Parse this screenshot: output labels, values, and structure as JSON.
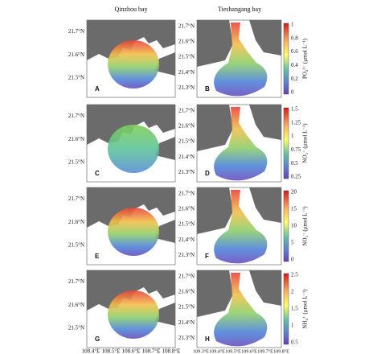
{
  "headers": [
    "Qinzhou bay",
    "Tieshangang bay"
  ],
  "left_lat": [
    "21.7°N",
    "21.6°N",
    "21.5°N"
  ],
  "right_lat": [
    "21.7°N",
    "21.6°N",
    "21.5°N",
    "21.4°N",
    "21.3°N"
  ],
  "panels": [
    "A",
    "B",
    "C",
    "D",
    "E",
    "F",
    "G",
    "H"
  ],
  "colorbars": [
    {
      "label": "PO₄³⁻ (μmol L⁻¹)",
      "ticks": [
        1,
        0.8,
        0.6,
        0.4,
        0.2,
        0
      ]
    },
    {
      "label": "NO₂⁻ (μmol L⁻¹)",
      "ticks": [
        1.5,
        1.25,
        1,
        0.75,
        0.5,
        0.25
      ]
    },
    {
      "label": "NO₃⁻ (μmol L⁻¹)",
      "ticks": [
        20,
        15,
        10,
        5,
        0
      ]
    },
    {
      "label": "NH₄⁺ (μmol L⁻¹)",
      "ticks": [
        2.5,
        2,
        1.5,
        1,
        0.5
      ]
    }
  ],
  "left_lon": [
    "108.4°E",
    "108.5°E",
    "108.6°E",
    "108.7°E",
    "108.8°E"
  ],
  "right_lon": [
    "109.3°E",
    "109.4°E",
    "109.5°E",
    "109.6°E",
    "109.7°E",
    "109.8°E"
  ]
}
